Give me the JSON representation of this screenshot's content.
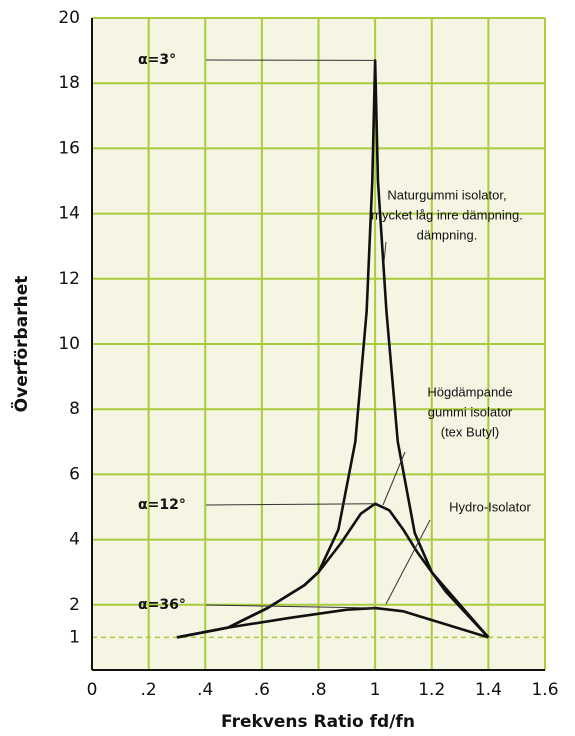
{
  "chart_data": {
    "type": "line",
    "xlabel": "Frekvens Ratio fd/fn",
    "ylabel": "Överförbarhet",
    "xlim": [
      0,
      1.6
    ],
    "ylim": [
      0,
      20
    ],
    "xticks": [
      0,
      {
        "value": 0.2,
        "label": ".2"
      },
      {
        "value": 0.4,
        "label": ".4"
      },
      {
        "value": 0.6,
        "label": ".6"
      },
      {
        "value": 0.8,
        "label": ".8"
      },
      1,
      1.2,
      1.4,
      1.6
    ],
    "yticks": [
      2,
      4,
      6,
      8,
      10,
      12,
      14,
      16,
      18,
      20
    ],
    "reference_line": 1,
    "grid": true,
    "grid_color": "#a8cc3c",
    "background": "#f6f5e4",
    "series": [
      {
        "name": "α=3°",
        "color": "#111111",
        "x": [
          0.3,
          0.48,
          0.62,
          0.75,
          0.8,
          0.87,
          0.93,
          0.97,
          0.99,
          1.0,
          1.01,
          1.04,
          1.08,
          1.14,
          1.2,
          1.3,
          1.4
        ],
        "values": [
          1,
          1.3,
          1.9,
          2.6,
          3.0,
          4.3,
          7,
          11,
          15,
          18.7,
          15,
          11,
          7,
          4.2,
          3.0,
          2.0,
          1.0
        ]
      },
      {
        "name": "α=12°",
        "color": "#111111",
        "x": [
          0.3,
          0.48,
          0.62,
          0.75,
          0.8,
          0.88,
          0.95,
          1.0,
          1.05,
          1.1,
          1.15,
          1.25,
          1.4
        ],
        "values": [
          1,
          1.3,
          1.9,
          2.6,
          3.0,
          3.9,
          4.8,
          5.1,
          4.9,
          4.3,
          3.6,
          2.4,
          1.0
        ]
      },
      {
        "name": "α=36°",
        "color": "#111111",
        "x": [
          0.3,
          0.48,
          0.7,
          0.9,
          1.0,
          1.1,
          1.25,
          1.4
        ],
        "values": [
          1,
          1.3,
          1.6,
          1.85,
          1.9,
          1.8,
          1.4,
          1.0
        ]
      }
    ],
    "annotations": [
      {
        "lines": [
          "Naturgummi isolator,",
          "mycket låg inre dämpning.",
          "dämpning."
        ]
      },
      {
        "lines": [
          "Högdämpande",
          "gummi isolator",
          "(tex Butyl)"
        ]
      },
      {
        "lines": [
          "Hydro-Isolator"
        ]
      }
    ]
  }
}
